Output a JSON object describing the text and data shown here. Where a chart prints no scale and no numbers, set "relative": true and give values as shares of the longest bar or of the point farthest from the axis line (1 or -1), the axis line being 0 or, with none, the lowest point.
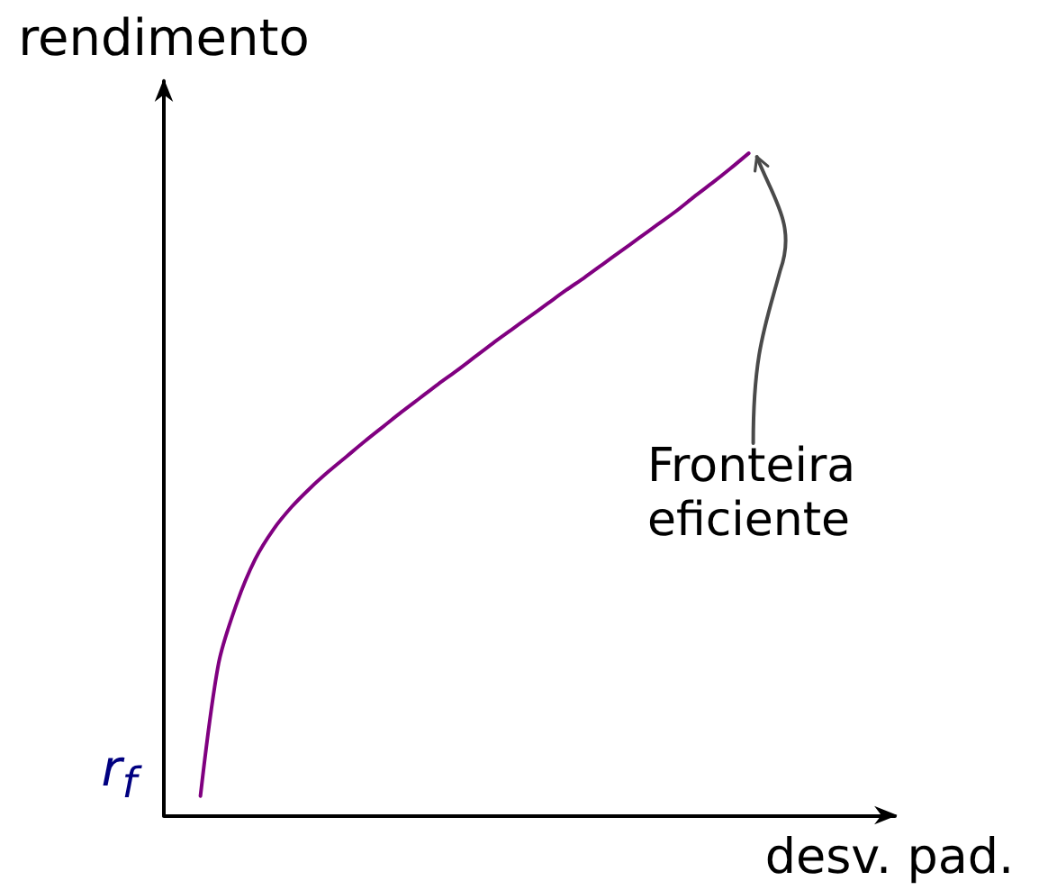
{
  "chart_data": {
    "type": "line",
    "relative": true,
    "xlabel": "desv. pad.",
    "ylabel": "rendimento",
    "marker": "none",
    "categories": [
      null,
      null,
      null,
      null,
      null,
      null,
      null,
      null,
      null,
      null,
      null,
      null,
      null,
      null,
      null,
      null,
      null,
      null,
      null,
      null,
      null,
      null,
      null,
      null,
      null,
      null,
      null,
      null,
      null,
      null,
      null,
      null,
      null,
      null,
      null,
      null,
      null,
      null,
      null,
      null,
      null
    ],
    "series": [
      {
        "name": "Fronteira eficiente",
        "color": "#800080",
        "values": [
          null,
          null,
          0.029,
          0.23,
          0.321,
          0.387,
          0.432,
          0.466,
          0.494,
          0.519,
          0.542,
          0.565,
          0.587,
          0.609,
          0.63,
          0.651,
          0.671,
          0.692,
          0.713,
          0.733,
          0.753,
          0.773,
          0.793,
          0.812,
          0.832,
          0.852,
          0.872,
          0.892,
          0.912,
          0.934,
          0.955,
          0.977,
          1,
          null,
          null,
          null,
          null,
          null,
          null,
          null,
          null
        ]
      }
    ],
    "annotations": [
      "r$_{f}$"
    ]
  }
}
